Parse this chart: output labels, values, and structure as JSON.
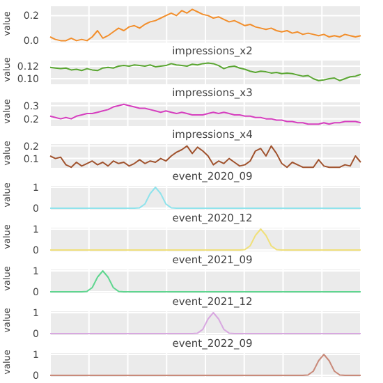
{
  "chart_data": [
    {
      "type": "line",
      "ylabel": "value",
      "categories": [
        null,
        null,
        null,
        null,
        null,
        null,
        null,
        null,
        null,
        null,
        null,
        null,
        null,
        null,
        null,
        null,
        null,
        null,
        null,
        null,
        null,
        null,
        null,
        null,
        null,
        null,
        null,
        null,
        null,
        null,
        null,
        null,
        null,
        null,
        null,
        null,
        null,
        null,
        null,
        null,
        null,
        null,
        null,
        null,
        null,
        null,
        null,
        null,
        null,
        null,
        null,
        null,
        null,
        null,
        null,
        null,
        null,
        null,
        null,
        null
      ],
      "series": [
        {
          "color": "#f28e2b",
          "values": [
            0.03,
            0.01,
            0.0,
            0.0,
            0.02,
            0.0,
            0.01,
            0.0,
            0.03,
            0.08,
            0.02,
            0.04,
            0.07,
            0.1,
            0.08,
            0.11,
            0.12,
            0.1,
            0.13,
            0.15,
            0.16,
            0.18,
            0.2,
            0.22,
            0.2,
            0.24,
            0.22,
            0.25,
            0.23,
            0.21,
            0.2,
            0.18,
            0.19,
            0.17,
            0.15,
            0.16,
            0.14,
            0.12,
            0.13,
            0.11,
            0.1,
            0.09,
            0.1,
            0.08,
            0.07,
            0.08,
            0.06,
            0.07,
            0.05,
            0.06,
            0.05,
            0.04,
            0.05,
            0.03,
            0.04,
            0.03,
            0.05,
            0.04,
            0.03,
            0.04
          ]
        }
      ],
      "ylim": [
        -0.02,
        0.28
      ],
      "yticks": [
        {
          "value": 0,
          "label": "0.0"
        },
        0.2
      ],
      "grid": true,
      "tick_labels": "y"
    },
    {
      "type": "line",
      "title": "impressions_x2",
      "ylabel": "value",
      "categories": [
        null,
        null,
        null,
        null,
        null,
        null,
        null,
        null,
        null,
        null,
        null,
        null,
        null,
        null,
        null,
        null,
        null,
        null,
        null,
        null,
        null,
        null,
        null,
        null,
        null,
        null,
        null,
        null,
        null,
        null,
        null,
        null,
        null,
        null,
        null,
        null,
        null,
        null,
        null,
        null,
        null,
        null,
        null,
        null,
        null,
        null,
        null,
        null,
        null,
        null,
        null,
        null,
        null,
        null,
        null,
        null,
        null,
        null,
        null,
        null
      ],
      "series": [
        {
          "color": "#5aa632",
          "values": [
            0.118,
            0.117,
            0.116,
            0.117,
            0.114,
            0.115,
            0.113,
            0.116,
            0.114,
            0.113,
            0.117,
            0.118,
            0.117,
            0.12,
            0.121,
            0.12,
            0.122,
            0.121,
            0.12,
            0.122,
            0.119,
            0.12,
            0.121,
            0.124,
            0.122,
            0.121,
            0.12,
            0.123,
            0.122,
            0.124,
            0.125,
            0.124,
            0.121,
            0.116,
            0.119,
            0.12,
            0.117,
            0.115,
            0.112,
            0.11,
            0.112,
            0.111,
            0.109,
            0.11,
            0.108,
            0.109,
            0.108,
            0.106,
            0.104,
            0.105,
            0.1,
            0.097,
            0.098,
            0.1,
            0.101,
            0.097,
            0.1,
            0.103,
            0.104,
            0.107
          ]
        }
      ],
      "ylim": [
        0.09,
        0.13
      ],
      "yticks": [
        {
          "value": 0.1,
          "label": "0.10"
        },
        0.12
      ],
      "grid": true,
      "tick_labels": "y"
    },
    {
      "type": "line",
      "title": "impressions_x3",
      "ylabel": "value",
      "categories": [
        null,
        null,
        null,
        null,
        null,
        null,
        null,
        null,
        null,
        null,
        null,
        null,
        null,
        null,
        null,
        null,
        null,
        null,
        null,
        null,
        null,
        null,
        null,
        null,
        null,
        null,
        null,
        null,
        null,
        null,
        null,
        null,
        null,
        null,
        null,
        null,
        null,
        null,
        null,
        null,
        null,
        null,
        null,
        null,
        null,
        null,
        null,
        null,
        null,
        null,
        null,
        null,
        null,
        null,
        null,
        null,
        null,
        null,
        null,
        null
      ],
      "series": [
        {
          "color": "#d63fbf",
          "values": [
            0.22,
            0.21,
            0.2,
            0.21,
            0.2,
            0.22,
            0.23,
            0.24,
            0.24,
            0.25,
            0.26,
            0.27,
            0.29,
            0.3,
            0.31,
            0.3,
            0.29,
            0.28,
            0.28,
            0.27,
            0.26,
            0.25,
            0.26,
            0.25,
            0.24,
            0.25,
            0.24,
            0.23,
            0.23,
            0.23,
            0.24,
            0.25,
            0.24,
            0.25,
            0.24,
            0.23,
            0.23,
            0.22,
            0.22,
            0.21,
            0.21,
            0.2,
            0.2,
            0.19,
            0.19,
            0.18,
            0.18,
            0.17,
            0.17,
            0.16,
            0.16,
            0.16,
            0.17,
            0.16,
            0.17,
            0.17,
            0.18,
            0.18,
            0.18,
            0.17
          ]
        }
      ],
      "ylim": [
        0.14,
        0.33
      ],
      "yticks": [
        0.2,
        0.3
      ],
      "grid": true,
      "tick_labels": "y"
    },
    {
      "type": "line",
      "title": "impressions_x4",
      "ylabel": "value",
      "categories": [
        null,
        null,
        null,
        null,
        null,
        null,
        null,
        null,
        null,
        null,
        null,
        null,
        null,
        null,
        null,
        null,
        null,
        null,
        null,
        null,
        null,
        null,
        null,
        null,
        null,
        null,
        null,
        null,
        null,
        null,
        null,
        null,
        null,
        null,
        null,
        null,
        null,
        null,
        null,
        null,
        null,
        null,
        null,
        null,
        null,
        null,
        null,
        null,
        null,
        null,
        null,
        null,
        null,
        null,
        null,
        null,
        null,
        null,
        null,
        null
      ],
      "series": [
        {
          "color": "#a0522d",
          "values": [
            0.12,
            0.1,
            0.11,
            0.05,
            0.03,
            0.07,
            0.04,
            0.06,
            0.08,
            0.05,
            0.07,
            0.04,
            0.08,
            0.06,
            0.07,
            0.04,
            0.06,
            0.09,
            0.06,
            0.08,
            0.07,
            0.1,
            0.08,
            0.12,
            0.15,
            0.17,
            0.2,
            0.14,
            0.19,
            0.16,
            0.12,
            0.05,
            0.08,
            0.06,
            0.1,
            0.07,
            0.04,
            0.05,
            0.08,
            0.16,
            0.18,
            0.12,
            0.2,
            0.14,
            0.06,
            0.03,
            0.07,
            0.05,
            0.03,
            0.03,
            0.03,
            0.09,
            0.04,
            0.03,
            0.03,
            0.03,
            0.05,
            0.04,
            0.12,
            0.07
          ]
        }
      ],
      "ylim": [
        0.02,
        0.22
      ],
      "yticks": [
        0.1,
        0.2
      ],
      "grid": true,
      "tick_labels": "y"
    },
    {
      "type": "line",
      "title": "event_2020_09",
      "ylabel": "value",
      "categories": [
        null,
        null,
        null,
        null,
        null,
        null,
        null,
        null,
        null,
        null,
        null,
        null,
        null,
        null,
        null,
        null,
        null,
        null,
        null,
        null,
        null,
        null,
        null,
        null,
        null,
        null,
        null,
        null,
        null,
        null,
        null,
        null,
        null,
        null,
        null,
        null,
        null,
        null,
        null,
        null,
        null,
        null,
        null,
        null,
        null,
        null,
        null,
        null,
        null,
        null,
        null,
        null,
        null,
        null,
        null,
        null,
        null,
        null,
        null,
        null
      ],
      "series": [
        {
          "color": "#8fe3ec",
          "values": [
            0,
            0,
            0,
            0,
            0,
            0,
            0,
            0,
            0,
            0,
            0,
            0,
            0,
            0,
            0,
            0,
            0,
            0.02,
            0.2,
            0.7,
            1,
            0.7,
            0.2,
            0.02,
            0,
            0,
            0,
            0,
            0,
            0,
            0,
            0,
            0,
            0,
            0,
            0,
            0,
            0,
            0,
            0,
            0,
            0,
            0,
            0,
            0,
            0,
            0,
            0,
            0,
            0,
            0,
            0,
            0,
            0,
            0,
            0,
            0,
            0,
            0,
            0
          ]
        }
      ],
      "ylim": [
        -0.1,
        1.1
      ],
      "yticks": [
        0,
        1
      ],
      "grid": true,
      "tick_labels": "y"
    },
    {
      "type": "line",
      "title": "event_2020_12",
      "ylabel": "value",
      "categories": [
        null,
        null,
        null,
        null,
        null,
        null,
        null,
        null,
        null,
        null,
        null,
        null,
        null,
        null,
        null,
        null,
        null,
        null,
        null,
        null,
        null,
        null,
        null,
        null,
        null,
        null,
        null,
        null,
        null,
        null,
        null,
        null,
        null,
        null,
        null,
        null,
        null,
        null,
        null,
        null,
        null,
        null,
        null,
        null,
        null,
        null,
        null,
        null,
        null,
        null,
        null,
        null,
        null,
        null,
        null,
        null,
        null,
        null,
        null,
        null
      ],
      "series": [
        {
          "color": "#f0e07a",
          "values": [
            0,
            0,
            0,
            0,
            0,
            0,
            0,
            0,
            0,
            0,
            0,
            0,
            0,
            0,
            0,
            0,
            0,
            0,
            0,
            0,
            0,
            0,
            0,
            0,
            0,
            0,
            0,
            0,
            0,
            0,
            0,
            0,
            0,
            0,
            0,
            0,
            0,
            0.02,
            0.2,
            0.7,
            1,
            0.7,
            0.2,
            0.02,
            0,
            0,
            0,
            0,
            0,
            0,
            0,
            0,
            0,
            0,
            0,
            0,
            0,
            0,
            0,
            0
          ]
        }
      ],
      "ylim": [
        -0.1,
        1.1
      ],
      "yticks": [
        0,
        1
      ],
      "grid": true,
      "tick_labels": "y"
    },
    {
      "type": "line",
      "title": "event_2021_09",
      "ylabel": "value",
      "categories": [
        null,
        null,
        null,
        null,
        null,
        null,
        null,
        null,
        null,
        null,
        null,
        null,
        null,
        null,
        null,
        null,
        null,
        null,
        null,
        null,
        null,
        null,
        null,
        null,
        null,
        null,
        null,
        null,
        null,
        null,
        null,
        null,
        null,
        null,
        null,
        null,
        null,
        null,
        null,
        null,
        null,
        null,
        null,
        null,
        null,
        null,
        null,
        null,
        null,
        null,
        null,
        null,
        null,
        null,
        null,
        null,
        null,
        null,
        null,
        null
      ],
      "series": [
        {
          "color": "#5fd68f",
          "values": [
            0,
            0,
            0,
            0,
            0,
            0,
            0,
            0.02,
            0.2,
            0.7,
            1,
            0.7,
            0.2,
            0.02,
            0,
            0,
            0,
            0,
            0,
            0,
            0,
            0,
            0,
            0,
            0,
            0,
            0,
            0,
            0,
            0,
            0,
            0,
            0,
            0,
            0,
            0,
            0,
            0,
            0,
            0,
            0,
            0,
            0,
            0,
            0,
            0,
            0,
            0,
            0,
            0,
            0,
            0,
            0,
            0,
            0,
            0,
            0,
            0,
            0,
            0
          ]
        }
      ],
      "ylim": [
        -0.1,
        1.1
      ],
      "yticks": [
        0,
        1
      ],
      "grid": true,
      "tick_labels": "y"
    },
    {
      "type": "line",
      "title": "event_2021_12",
      "ylabel": "value",
      "categories": [
        null,
        null,
        null,
        null,
        null,
        null,
        null,
        null,
        null,
        null,
        null,
        null,
        null,
        null,
        null,
        null,
        null,
        null,
        null,
        null,
        null,
        null,
        null,
        null,
        null,
        null,
        null,
        null,
        null,
        null,
        null,
        null,
        null,
        null,
        null,
        null,
        null,
        null,
        null,
        null,
        null,
        null,
        null,
        null,
        null,
        null,
        null,
        null,
        null,
        null,
        null,
        null,
        null,
        null,
        null,
        null,
        null,
        null,
        null,
        null
      ],
      "series": [
        {
          "color": "#d8a8e0",
          "values": [
            0,
            0,
            0,
            0,
            0,
            0,
            0,
            0,
            0,
            0,
            0,
            0,
            0,
            0,
            0,
            0,
            0,
            0,
            0,
            0,
            0,
            0,
            0,
            0,
            0,
            0,
            0,
            0,
            0.02,
            0.2,
            0.7,
            1,
            0.7,
            0.2,
            0.02,
            0,
            0,
            0,
            0,
            0,
            0,
            0,
            0,
            0,
            0,
            0,
            0,
            0,
            0,
            0,
            0,
            0,
            0,
            0,
            0,
            0,
            0,
            0,
            0,
            0
          ]
        }
      ],
      "ylim": [
        -0.1,
        1.1
      ],
      "yticks": [
        0,
        1
      ],
      "grid": true,
      "tick_labels": "y"
    },
    {
      "type": "line",
      "title": "event_2022_09",
      "ylabel": "value",
      "categories": [
        null,
        null,
        null,
        null,
        null,
        null,
        null,
        null,
        null,
        null,
        null,
        null,
        null,
        null,
        null,
        null,
        null,
        null,
        null,
        null,
        null,
        null,
        null,
        null,
        null,
        null,
        null,
        null,
        null,
        null,
        null,
        null,
        null,
        null,
        null,
        null,
        null,
        null,
        null,
        null,
        null,
        null,
        null,
        null,
        null,
        null,
        null,
        null,
        null,
        null,
        null,
        null,
        null,
        null,
        null,
        null,
        null,
        null,
        null,
        null
      ],
      "series": [
        {
          "color": "#c98a7a",
          "values": [
            0,
            0,
            0,
            0,
            0,
            0,
            0,
            0,
            0,
            0,
            0,
            0,
            0,
            0,
            0,
            0,
            0,
            0,
            0,
            0,
            0,
            0,
            0,
            0,
            0,
            0,
            0,
            0,
            0,
            0,
            0,
            0,
            0,
            0,
            0,
            0,
            0,
            0,
            0,
            0,
            0,
            0,
            0,
            0,
            0,
            0,
            0,
            0,
            0,
            0.02,
            0.2,
            0.7,
            1,
            0.7,
            0.2,
            0.02,
            0,
            0,
            0,
            0
          ]
        }
      ],
      "ylim": [
        -0.1,
        1.1
      ],
      "yticks": [
        0,
        1
      ],
      "grid": true,
      "tick_labels": "y"
    }
  ]
}
